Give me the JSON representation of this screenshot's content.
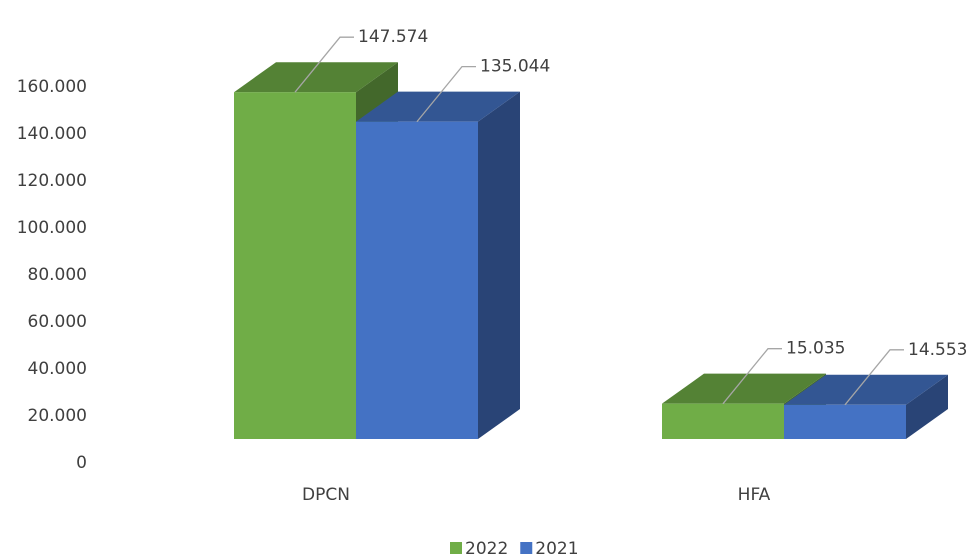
{
  "chart_data": {
    "type": "bar3d",
    "categories": [
      "DPCN",
      "HFA"
    ],
    "series": [
      {
        "name": "2022",
        "color": "#70ad47",
        "values": [
          147574,
          15035
        ],
        "value_labels": [
          "147.574",
          "15.035"
        ]
      },
      {
        "name": "2021",
        "color": "#4472c4",
        "values": [
          135044,
          14553
        ],
        "value_labels": [
          "135.044",
          "14.553"
        ]
      }
    ],
    "ylim": [
      0,
      160000
    ],
    "yticks": [
      0,
      {
        "value": 20000,
        "label": "20.000"
      },
      {
        "value": 40000,
        "label": "40.000"
      },
      {
        "value": 60000,
        "label": "60.000"
      },
      {
        "value": 80000,
        "label": "80.000"
      },
      {
        "value": 100000,
        "label": "100.000"
      },
      {
        "value": 120000,
        "label": "120.000"
      },
      {
        "value": 140000,
        "label": "140.000"
      },
      {
        "value": 160000,
        "label": "160.000"
      }
    ],
    "legend": "bottom"
  }
}
